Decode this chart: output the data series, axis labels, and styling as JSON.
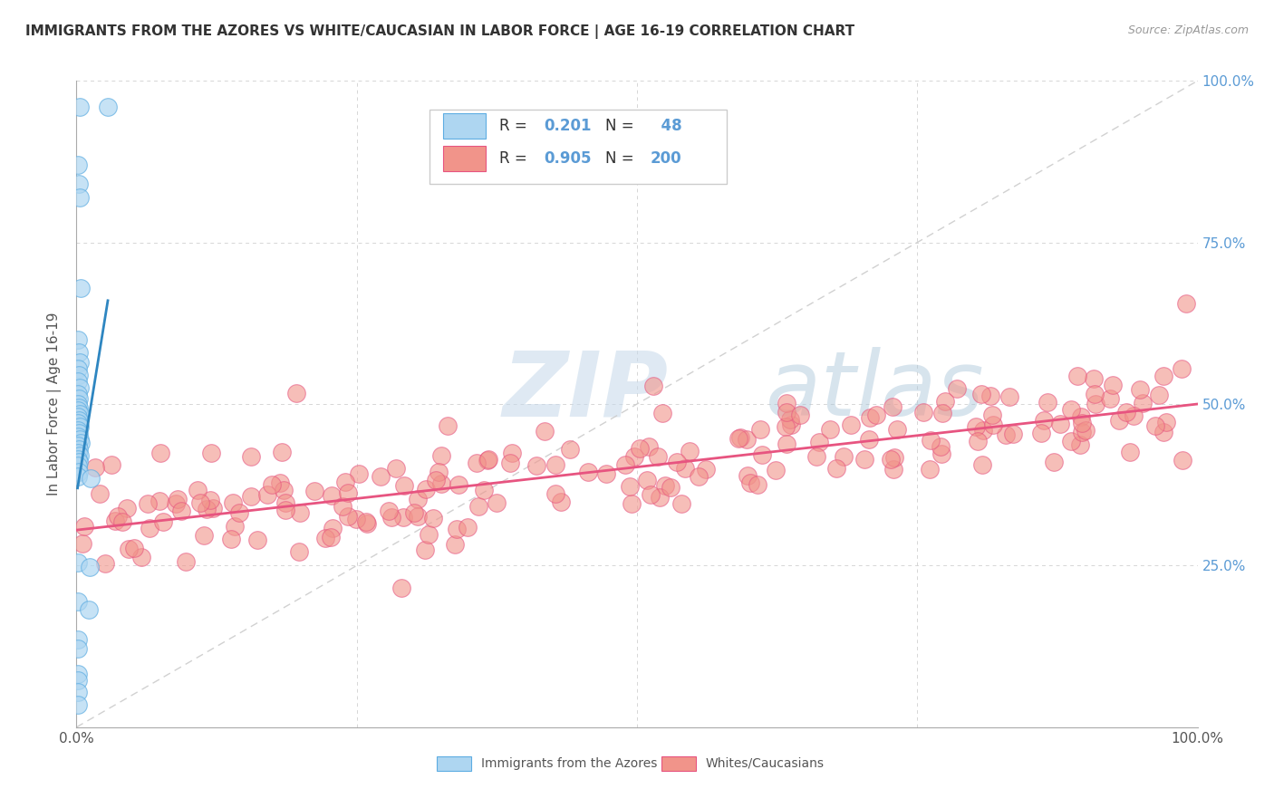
{
  "title": "IMMIGRANTS FROM THE AZORES VS WHITE/CAUCASIAN IN LABOR FORCE | AGE 16-19 CORRELATION CHART",
  "source": "Source: ZipAtlas.com",
  "ylabel": "In Labor Force | Age 16-19",
  "xlim": [
    0,
    1.0
  ],
  "ylim": [
    0,
    1.0
  ],
  "blue_R": 0.201,
  "blue_N": 48,
  "pink_R": 0.905,
  "pink_N": 200,
  "legend_label_blue": "Immigrants from the Azores",
  "legend_label_pink": "Whites/Caucasians",
  "blue_color": "#AED6F1",
  "pink_color": "#F1948A",
  "blue_edge_color": "#5DADE2",
  "pink_edge_color": "#E75480",
  "blue_line_color": "#2E86C1",
  "pink_line_color": "#E75480",
  "diagonal_color": "#CCCCCC",
  "watermark_zip": "ZIP",
  "watermark_atlas": "atlas",
  "background_color": "#FFFFFF",
  "grid_color": "#CCCCCC",
  "title_color": "#333333",
  "right_axis_color": "#5B9BD5",
  "seed": 42,
  "blue_points": [
    [
      0.003,
      0.96
    ],
    [
      0.001,
      0.87
    ],
    [
      0.002,
      0.84
    ],
    [
      0.003,
      0.82
    ],
    [
      0.028,
      0.96
    ],
    [
      0.004,
      0.68
    ],
    [
      0.001,
      0.6
    ],
    [
      0.002,
      0.58
    ],
    [
      0.003,
      0.565
    ],
    [
      0.001,
      0.555
    ],
    [
      0.002,
      0.545
    ],
    [
      0.001,
      0.535
    ],
    [
      0.003,
      0.525
    ],
    [
      0.001,
      0.515
    ],
    [
      0.002,
      0.508
    ],
    [
      0.001,
      0.5
    ],
    [
      0.002,
      0.495
    ],
    [
      0.001,
      0.49
    ],
    [
      0.003,
      0.485
    ],
    [
      0.001,
      0.48
    ],
    [
      0.002,
      0.475
    ],
    [
      0.001,
      0.47
    ],
    [
      0.003,
      0.465
    ],
    [
      0.001,
      0.46
    ],
    [
      0.002,
      0.455
    ],
    [
      0.001,
      0.45
    ],
    [
      0.003,
      0.445
    ],
    [
      0.004,
      0.44
    ],
    [
      0.001,
      0.435
    ],
    [
      0.002,
      0.43
    ],
    [
      0.001,
      0.425
    ],
    [
      0.003,
      0.42
    ],
    [
      0.001,
      0.415
    ],
    [
      0.002,
      0.41
    ],
    [
      0.001,
      0.405
    ],
    [
      0.002,
      0.395
    ],
    [
      0.001,
      0.388
    ],
    [
      0.013,
      0.385
    ],
    [
      0.001,
      0.255
    ],
    [
      0.012,
      0.248
    ],
    [
      0.001,
      0.195
    ],
    [
      0.011,
      0.182
    ],
    [
      0.001,
      0.135
    ],
    [
      0.001,
      0.122
    ],
    [
      0.001,
      0.082
    ],
    [
      0.001,
      0.072
    ],
    [
      0.001,
      0.055
    ],
    [
      0.001,
      0.035
    ]
  ],
  "pink_slope": 0.195,
  "pink_intercept": 0.305,
  "pink_noise_std": 0.045,
  "blue_line_x0": 0.001,
  "blue_line_x1": 0.028,
  "blue_line_y0": 0.37,
  "blue_line_y1": 0.66
}
